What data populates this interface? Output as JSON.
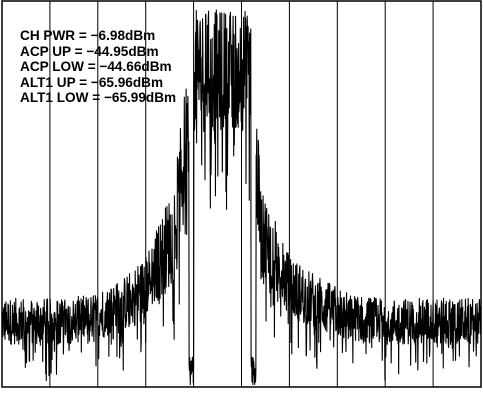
{
  "chart_data": {
    "type": "line",
    "title": "",
    "xlabel": "",
    "ylabel": "",
    "grid": true,
    "grid_vertical_divisions": 10,
    "colors": {
      "trace": "#000000",
      "grid": "#000000",
      "background": "#ffffff"
    },
    "annotations": [
      {
        "name": "CH PWR",
        "value": -6.98,
        "unit": "dBm",
        "text": "CH PWR = −6.98dBm"
      },
      {
        "name": "ACP UP",
        "value": -44.95,
        "unit": "dBm",
        "text": "ACP UP = −44.95dBm"
      },
      {
        "name": "ACP LOW",
        "value": -44.66,
        "unit": "dBm",
        "text": "ACP LOW = −44.66dBm"
      },
      {
        "name": "ALT1 UP",
        "value": -65.96,
        "unit": "dBm",
        "text": "ALT1 UP = −65.96dBm"
      },
      {
        "name": "ALT1 LOW",
        "value": -65.99,
        "unit": "dBm",
        "text": "ALT1 LOW = −65.99dBm"
      }
    ],
    "trace_profile": {
      "x_divisions": [
        0,
        1.3,
        1.9,
        2.5,
        3.0,
        3.6,
        4.0,
        5.2,
        5.4,
        6.0,
        6.7,
        7.3,
        8.0,
        10
      ],
      "level_divisions": [
        1.7,
        1.7,
        1.8,
        2.1,
        2.6,
        4.0,
        8.2,
        8.2,
        4.0,
        2.6,
        2.1,
        1.8,
        1.7,
        1.7
      ],
      "noise_divisions": [
        0.6,
        0.6,
        0.6,
        0.7,
        0.8,
        1.3,
        1.6,
        1.6,
        1.3,
        0.8,
        0.7,
        0.6,
        0.6,
        0.6
      ],
      "channel_edges_divisions": [
        4.0,
        5.2
      ],
      "notch_divisions": [
        3.95,
        5.25
      ]
    }
  }
}
